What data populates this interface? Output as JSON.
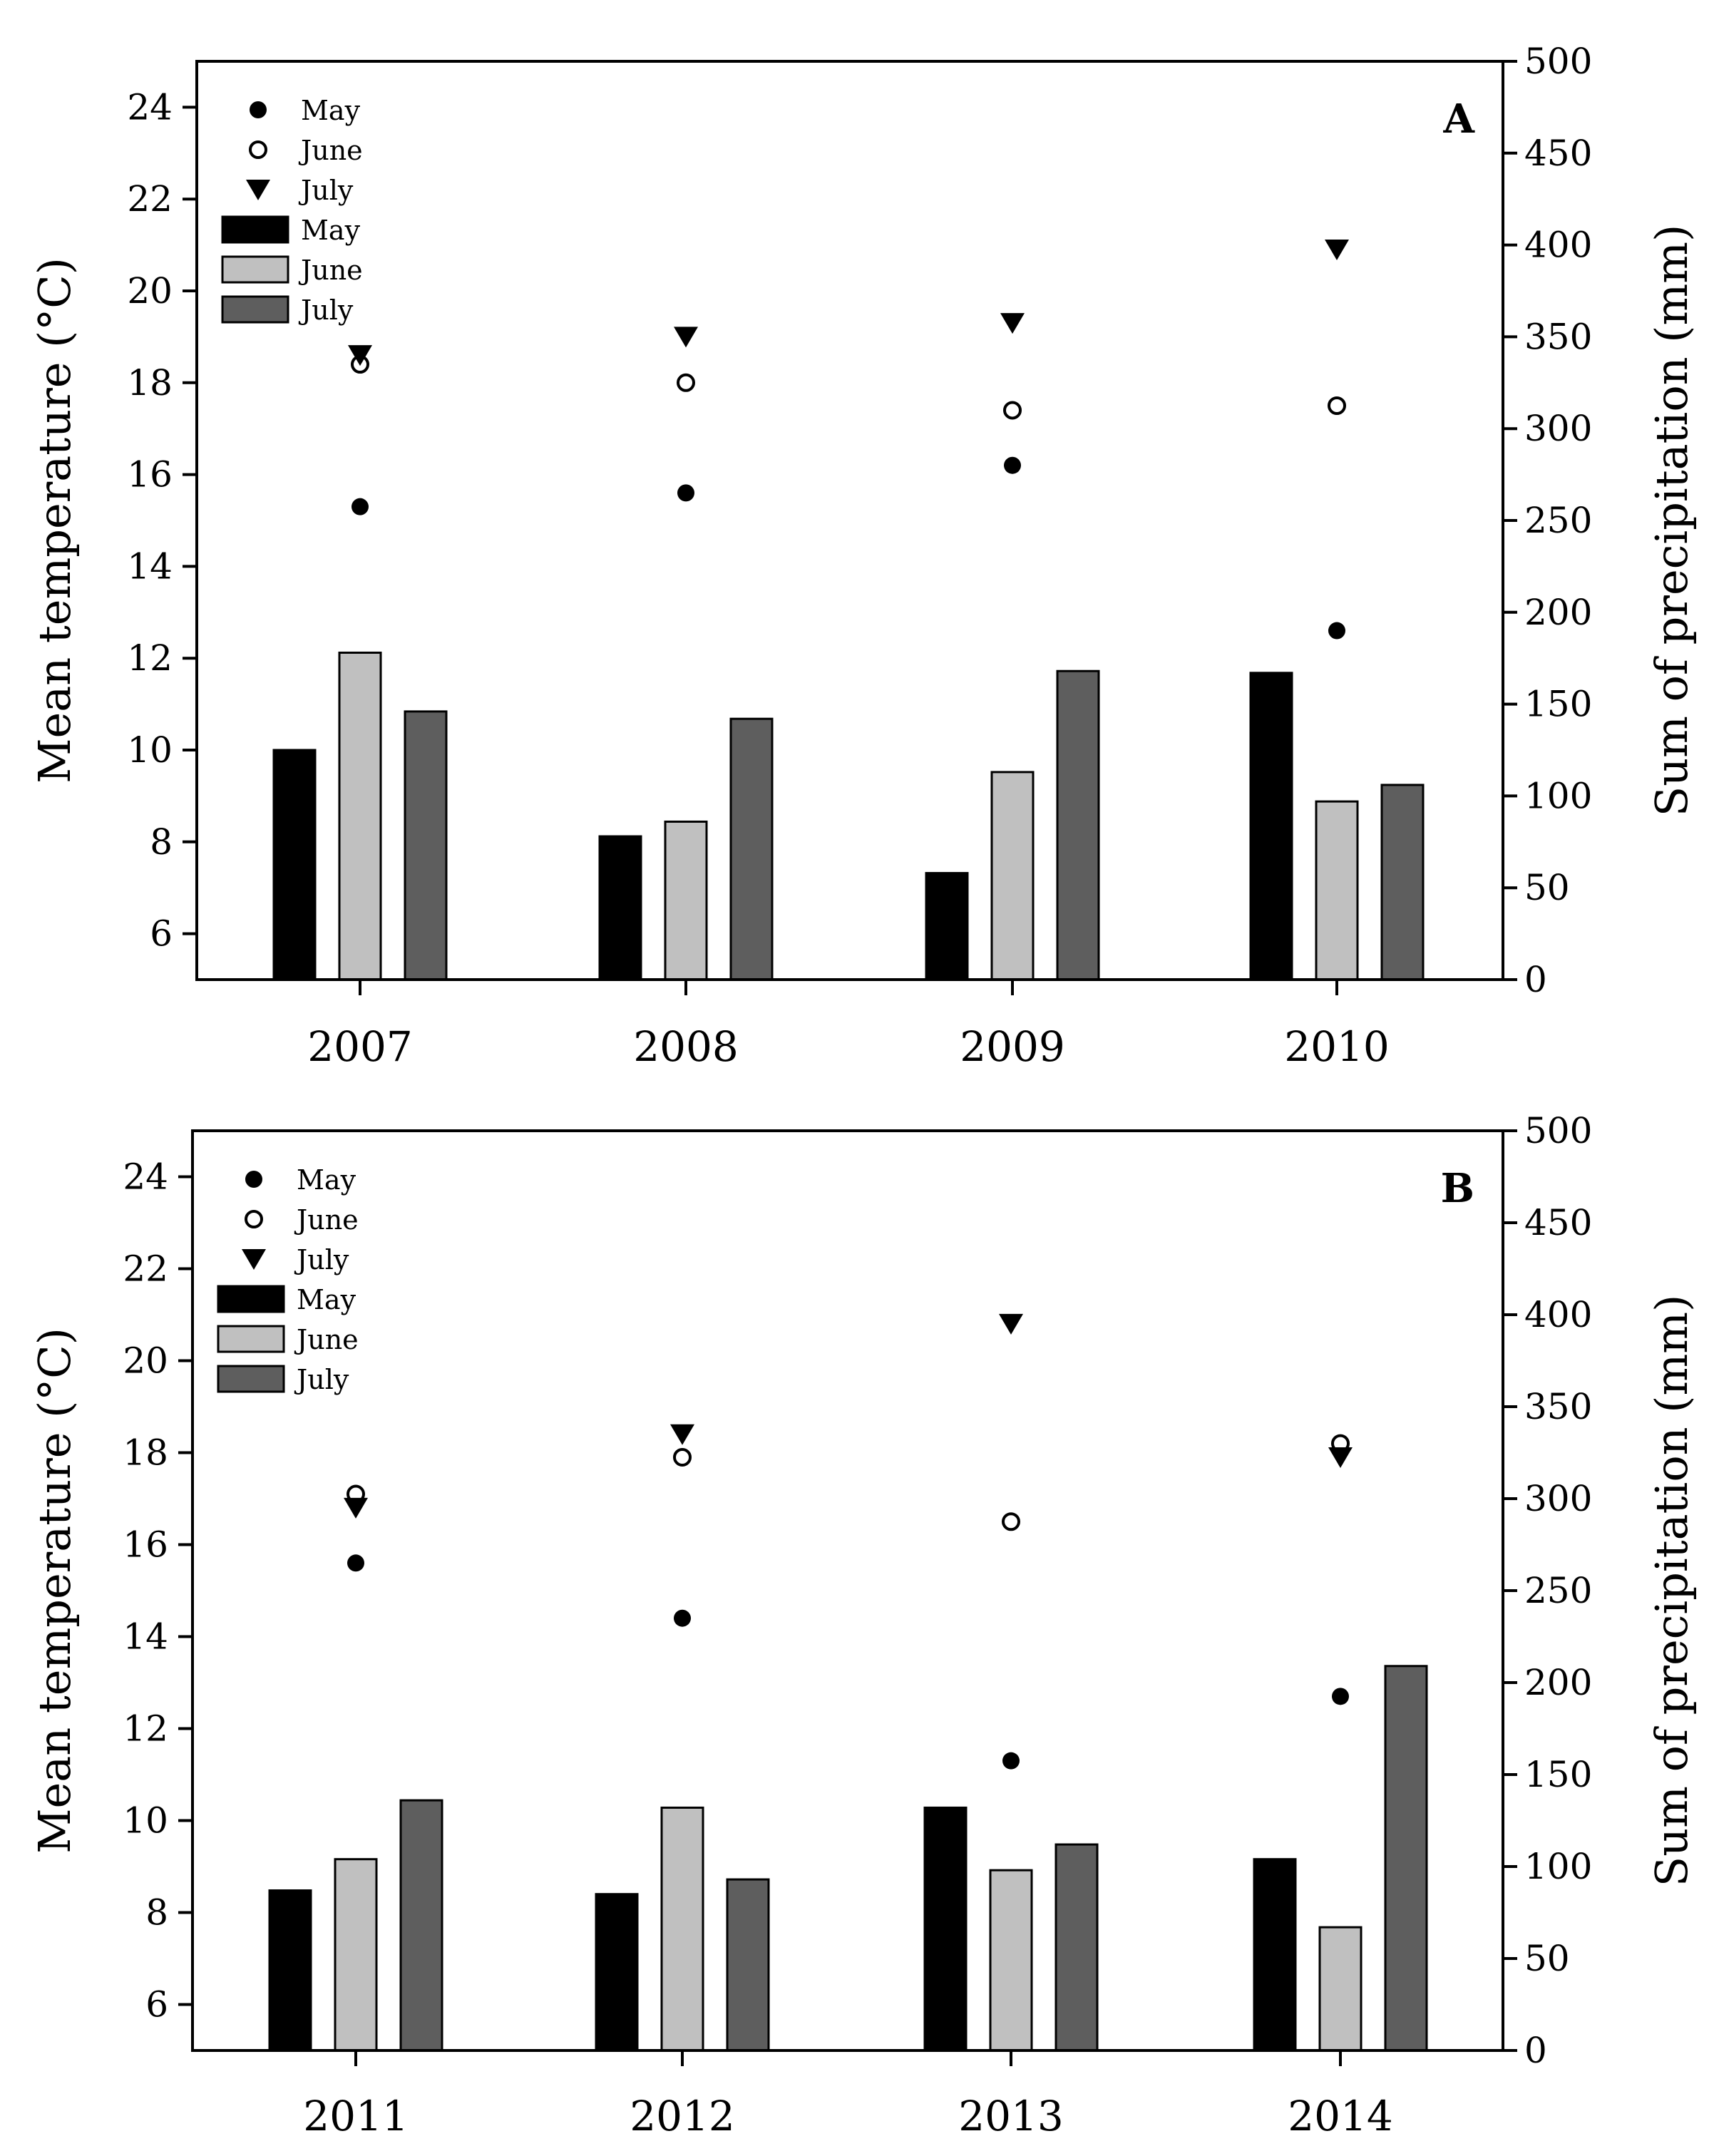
{
  "figure": {
    "description_free": true
  },
  "chart_data": [
    {
      "type": "bar",
      "panel_label": "A",
      "categories": [
        "2007",
        "2008",
        "2009",
        "2010"
      ],
      "ylabel": "Mean temperature (°C)",
      "y2label": "Sum of precipitation (mm)",
      "ylim": [
        5,
        25
      ],
      "y2lim": [
        0,
        500
      ],
      "yticks": [
        6,
        8,
        10,
        12,
        14,
        16,
        18,
        20,
        22,
        24
      ],
      "y2ticks": [
        0,
        50,
        100,
        150,
        200,
        250,
        300,
        350,
        400,
        450,
        500
      ],
      "bar_series": [
        {
          "name": "May",
          "color": "#000000",
          "values": [
            125,
            78,
            58,
            167
          ]
        },
        {
          "name": "June",
          "color": "#c0c0c0",
          "values": [
            178,
            86,
            113,
            97
          ]
        },
        {
          "name": "July",
          "color": "#5e5e5e",
          "values": [
            146,
            142,
            168,
            106
          ]
        }
      ],
      "point_series": [
        {
          "name": "May",
          "marker": "filled-circle",
          "values": [
            15.3,
            15.6,
            16.2,
            12.6
          ]
        },
        {
          "name": "June",
          "marker": "open-circle",
          "values": [
            18.4,
            18.0,
            17.4,
            17.5
          ]
        },
        {
          "name": "July",
          "marker": "filled-triangle-down",
          "values": [
            18.6,
            19.0,
            19.3,
            20.9
          ]
        }
      ],
      "legend": [
        "May",
        "June",
        "July",
        "May",
        "June",
        "July"
      ]
    },
    {
      "type": "bar",
      "panel_label": "B",
      "categories": [
        "2011",
        "2012",
        "2013",
        "2014"
      ],
      "ylabel": "Mean temperature (°C)",
      "y2label": "Sum of precipitation (mm)",
      "ylim": [
        5,
        25
      ],
      "y2lim": [
        0,
        500
      ],
      "yticks": [
        6,
        8,
        10,
        12,
        14,
        16,
        18,
        20,
        22,
        24
      ],
      "y2ticks": [
        0,
        50,
        100,
        150,
        200,
        250,
        300,
        350,
        400,
        450,
        500
      ],
      "bar_series": [
        {
          "name": "May",
          "color": "#000000",
          "values": [
            87,
            85,
            132,
            104
          ]
        },
        {
          "name": "June",
          "color": "#c0c0c0",
          "values": [
            104,
            132,
            98,
            67
          ]
        },
        {
          "name": "July",
          "color": "#5e5e5e",
          "values": [
            136,
            93,
            112,
            209
          ]
        }
      ],
      "point_series": [
        {
          "name": "May",
          "marker": "filled-circle",
          "values": [
            15.6,
            14.4,
            11.3,
            12.7
          ]
        },
        {
          "name": "June",
          "marker": "open-circle",
          "values": [
            17.1,
            17.9,
            16.5,
            18.2
          ]
        },
        {
          "name": "July",
          "marker": "filled-triangle-down",
          "values": [
            16.8,
            18.4,
            20.8,
            17.9
          ]
        }
      ],
      "legend": [
        "May",
        "June",
        "July",
        "May",
        "June",
        "July"
      ]
    }
  ]
}
